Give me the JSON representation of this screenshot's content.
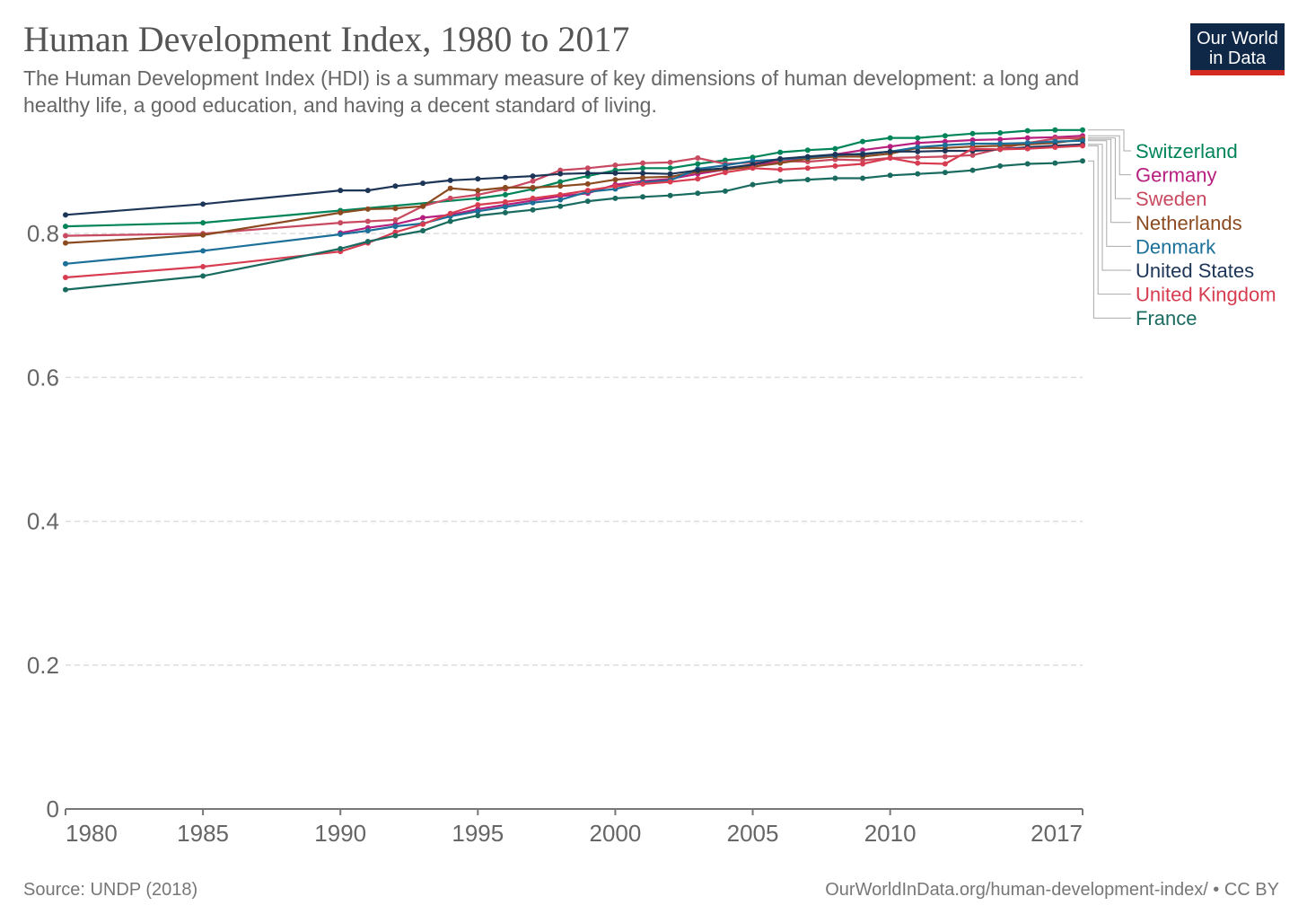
{
  "header": {
    "title": "Human Development Index, 1980 to 2017",
    "subtitle": "The Human Development Index (HDI) is a summary measure of key dimensions of human development: a long and healthy life, a good education, and having a decent standard of living.",
    "logo_line1": "Our World",
    "logo_line2": "in Data"
  },
  "footer": {
    "source": "Source: UNDP (2018)",
    "credit": "OurWorldInData.org/human-development-index/ • CC BY"
  },
  "colors": {
    "logo_bg": "#0f2847",
    "logo_accent": "#d42b21"
  },
  "chart_data": {
    "type": "line",
    "title": "Human Development Index, 1980 to 2017",
    "xlabel": "",
    "ylabel": "",
    "xlim": [
      1980,
      2017
    ],
    "ylim": [
      0,
      0.95
    ],
    "x_ticks": [
      "1980",
      "1985",
      "1990",
      "1995",
      "2000",
      "2005",
      "2010",
      "2017"
    ],
    "y_ticks": [
      "0",
      "0.2",
      "0.4",
      "0.6",
      "0.8"
    ],
    "grid": "horizontal dashed",
    "legend_placement": "right",
    "series": [
      {
        "name": "Switzerland",
        "color": "#00845a",
        "points": [
          [
            1980,
            0.81
          ],
          [
            1985,
            0.815
          ],
          [
            1990,
            0.832
          ],
          [
            1995,
            0.849
          ],
          [
            1996,
            0.854
          ],
          [
            1997,
            0.862
          ],
          [
            1998,
            0.872
          ],
          [
            1999,
            0.88
          ],
          [
            2000,
            0.888
          ],
          [
            2001,
            0.891
          ],
          [
            2002,
            0.891
          ],
          [
            2003,
            0.897
          ],
          [
            2004,
            0.902
          ],
          [
            2005,
            0.906
          ],
          [
            2006,
            0.913
          ],
          [
            2007,
            0.916
          ],
          [
            2008,
            0.918
          ],
          [
            2009,
            0.928
          ],
          [
            2010,
            0.933
          ],
          [
            2011,
            0.933
          ],
          [
            2012,
            0.936
          ],
          [
            2013,
            0.939
          ],
          [
            2014,
            0.94
          ],
          [
            2015,
            0.943
          ],
          [
            2016,
            0.944
          ],
          [
            2017,
            0.944
          ]
        ]
      },
      {
        "name": "Germany",
        "color": "#b71f7f",
        "points": [
          [
            1990,
            0.801
          ],
          [
            1991,
            0.808
          ],
          [
            1992,
            0.813
          ],
          [
            1993,
            0.822
          ],
          [
            1994,
            0.826
          ],
          [
            1995,
            0.834
          ],
          [
            1996,
            0.84
          ],
          [
            1997,
            0.846
          ],
          [
            1998,
            0.852
          ],
          [
            1999,
            0.856
          ],
          [
            2000,
            0.868
          ],
          [
            2001,
            0.873
          ],
          [
            2002,
            0.876
          ],
          [
            2003,
            0.883
          ],
          [
            2004,
            0.889
          ],
          [
            2005,
            0.896
          ],
          [
            2006,
            0.9
          ],
          [
            2007,
            0.905
          ],
          [
            2008,
            0.91
          ],
          [
            2009,
            0.916
          ],
          [
            2010,
            0.921
          ],
          [
            2011,
            0.926
          ],
          [
            2012,
            0.928
          ],
          [
            2013,
            0.93
          ],
          [
            2014,
            0.931
          ],
          [
            2015,
            0.933
          ],
          [
            2016,
            0.934
          ],
          [
            2017,
            0.936
          ]
        ]
      },
      {
        "name": "Sweden",
        "color": "#c84a60",
        "points": [
          [
            1980,
            0.797
          ],
          [
            1985,
            0.8
          ],
          [
            1990,
            0.815
          ],
          [
            1991,
            0.817
          ],
          [
            1992,
            0.819
          ],
          [
            1993,
            0.838
          ],
          [
            1994,
            0.849
          ],
          [
            1995,
            0.854
          ],
          [
            1996,
            0.862
          ],
          [
            1997,
            0.873
          ],
          [
            1998,
            0.888
          ],
          [
            1999,
            0.891
          ],
          [
            2000,
            0.895
          ],
          [
            2001,
            0.898
          ],
          [
            2002,
            0.899
          ],
          [
            2003,
            0.905
          ],
          [
            2004,
            0.897
          ],
          [
            2005,
            0.899
          ],
          [
            2006,
            0.901
          ],
          [
            2007,
            0.9
          ],
          [
            2008,
            0.903
          ],
          [
            2009,
            0.902
          ],
          [
            2010,
            0.905
          ],
          [
            2011,
            0.906
          ],
          [
            2012,
            0.907
          ],
          [
            2013,
            0.909
          ],
          [
            2014,
            0.918
          ],
          [
            2015,
            0.926
          ],
          [
            2016,
            0.932
          ],
          [
            2017,
            0.933
          ]
        ]
      },
      {
        "name": "Netherlands",
        "color": "#8b4a20",
        "points": [
          [
            1980,
            0.787
          ],
          [
            1985,
            0.798
          ],
          [
            1990,
            0.829
          ],
          [
            1991,
            0.834
          ],
          [
            1992,
            0.835
          ],
          [
            1993,
            0.838
          ],
          [
            1994,
            0.863
          ],
          [
            1995,
            0.86
          ],
          [
            1996,
            0.864
          ],
          [
            1997,
            0.864
          ],
          [
            1998,
            0.866
          ],
          [
            1999,
            0.869
          ],
          [
            2000,
            0.875
          ],
          [
            2001,
            0.878
          ],
          [
            2002,
            0.879
          ],
          [
            2003,
            0.886
          ],
          [
            2004,
            0.889
          ],
          [
            2005,
            0.893
          ],
          [
            2006,
            0.898
          ],
          [
            2007,
            0.904
          ],
          [
            2008,
            0.907
          ],
          [
            2009,
            0.907
          ],
          [
            2010,
            0.911
          ],
          [
            2011,
            0.919
          ],
          [
            2012,
            0.919
          ],
          [
            2013,
            0.921
          ],
          [
            2014,
            0.922
          ],
          [
            2015,
            0.924
          ],
          [
            2016,
            0.926
          ],
          [
            2017,
            0.931
          ]
        ]
      },
      {
        "name": "Denmark",
        "color": "#1b6f99",
        "points": [
          [
            1980,
            0.758
          ],
          [
            1985,
            0.776
          ],
          [
            1990,
            0.799
          ],
          [
            1991,
            0.804
          ],
          [
            1992,
            0.81
          ],
          [
            1993,
            0.814
          ],
          [
            1994,
            0.824
          ],
          [
            1995,
            0.831
          ],
          [
            1996,
            0.837
          ],
          [
            1997,
            0.843
          ],
          [
            1998,
            0.847
          ],
          [
            1999,
            0.858
          ],
          [
            2000,
            0.862
          ],
          [
            2001,
            0.871
          ],
          [
            2002,
            0.874
          ],
          [
            2003,
            0.89
          ],
          [
            2004,
            0.895
          ],
          [
            2005,
            0.901
          ],
          [
            2006,
            0.903
          ],
          [
            2007,
            0.906
          ],
          [
            2008,
            0.909
          ],
          [
            2009,
            0.911
          ],
          [
            2010,
            0.914
          ],
          [
            2011,
            0.92
          ],
          [
            2012,
            0.923
          ],
          [
            2013,
            0.925
          ],
          [
            2014,
            0.925
          ],
          [
            2015,
            0.926
          ],
          [
            2016,
            0.928
          ],
          [
            2017,
            0.929
          ]
        ]
      },
      {
        "name": "United States",
        "color": "#1d3557",
        "points": [
          [
            1980,
            0.826
          ],
          [
            1985,
            0.841
          ],
          [
            1990,
            0.86
          ],
          [
            1991,
            0.86
          ],
          [
            1992,
            0.866
          ],
          [
            1993,
            0.87
          ],
          [
            1994,
            0.874
          ],
          [
            1995,
            0.876
          ],
          [
            1996,
            0.878
          ],
          [
            1997,
            0.88
          ],
          [
            1998,
            0.883
          ],
          [
            1999,
            0.884
          ],
          [
            2000,
            0.884
          ],
          [
            2001,
            0.884
          ],
          [
            2002,
            0.883
          ],
          [
            2003,
            0.888
          ],
          [
            2004,
            0.891
          ],
          [
            2005,
            0.896
          ],
          [
            2006,
            0.904
          ],
          [
            2007,
            0.907
          ],
          [
            2008,
            0.91
          ],
          [
            2009,
            0.91
          ],
          [
            2010,
            0.914
          ],
          [
            2011,
            0.914
          ],
          [
            2012,
            0.915
          ],
          [
            2013,
            0.915
          ],
          [
            2014,
            0.917
          ],
          [
            2015,
            0.92
          ],
          [
            2016,
            0.922
          ],
          [
            2017,
            0.924
          ]
        ]
      },
      {
        "name": "United Kingdom",
        "color": "#d73c50",
        "points": [
          [
            1980,
            0.739
          ],
          [
            1985,
            0.754
          ],
          [
            1990,
            0.775
          ],
          [
            1991,
            0.787
          ],
          [
            1992,
            0.802
          ],
          [
            1993,
            0.813
          ],
          [
            1994,
            0.828
          ],
          [
            1995,
            0.84
          ],
          [
            1996,
            0.844
          ],
          [
            1997,
            0.849
          ],
          [
            1998,
            0.854
          ],
          [
            1999,
            0.86
          ],
          [
            2000,
            0.866
          ],
          [
            2001,
            0.869
          ],
          [
            2002,
            0.872
          ],
          [
            2003,
            0.876
          ],
          [
            2004,
            0.885
          ],
          [
            2005,
            0.891
          ],
          [
            2006,
            0.889
          ],
          [
            2007,
            0.891
          ],
          [
            2008,
            0.894
          ],
          [
            2009,
            0.897
          ],
          [
            2010,
            0.905
          ],
          [
            2011,
            0.898
          ],
          [
            2012,
            0.897
          ],
          [
            2013,
            0.918
          ],
          [
            2014,
            0.917
          ],
          [
            2015,
            0.918
          ],
          [
            2016,
            0.92
          ],
          [
            2017,
            0.922
          ]
        ]
      },
      {
        "name": "France",
        "color": "#1a6b5f",
        "points": [
          [
            1980,
            0.722
          ],
          [
            1985,
            0.741
          ],
          [
            1990,
            0.779
          ],
          [
            1991,
            0.789
          ],
          [
            1992,
            0.797
          ],
          [
            1993,
            0.804
          ],
          [
            1994,
            0.817
          ],
          [
            1995,
            0.825
          ],
          [
            1996,
            0.829
          ],
          [
            1997,
            0.833
          ],
          [
            1998,
            0.838
          ],
          [
            1999,
            0.845
          ],
          [
            2000,
            0.849
          ],
          [
            2001,
            0.851
          ],
          [
            2002,
            0.853
          ],
          [
            2003,
            0.856
          ],
          [
            2004,
            0.859
          ],
          [
            2005,
            0.868
          ],
          [
            2006,
            0.873
          ],
          [
            2007,
            0.875
          ],
          [
            2008,
            0.877
          ],
          [
            2009,
            0.877
          ],
          [
            2010,
            0.881
          ],
          [
            2011,
            0.883
          ],
          [
            2012,
            0.885
          ],
          [
            2013,
            0.888
          ],
          [
            2014,
            0.894
          ],
          [
            2015,
            0.897
          ],
          [
            2016,
            0.898
          ],
          [
            2017,
            0.901
          ]
        ]
      }
    ]
  }
}
